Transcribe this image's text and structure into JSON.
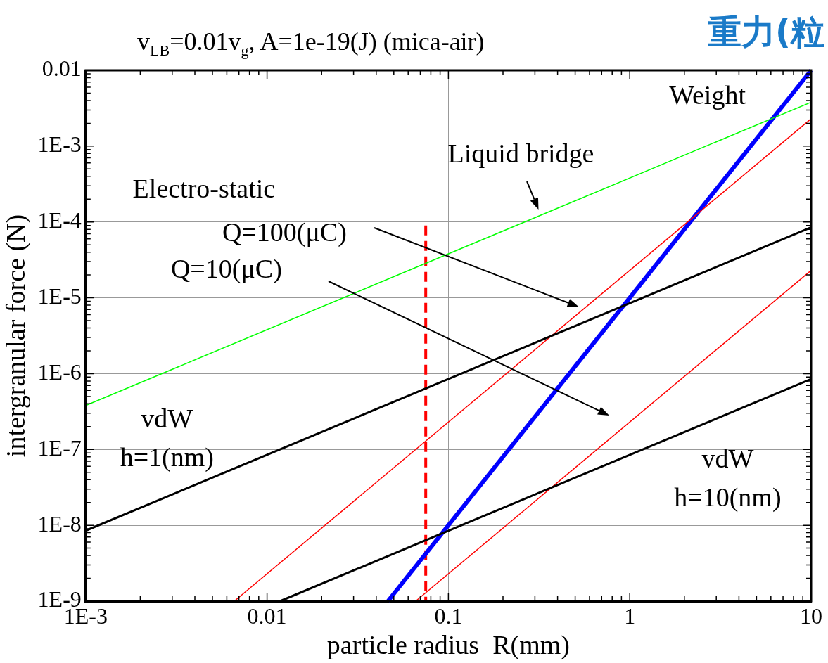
{
  "chart_data": {
    "type": "line",
    "title": "v$_{LB}$=0.01v$_{g}$,  A=1e-19(J) (mica-air)",
    "xlabel": "particle radius  R(mm)",
    "ylabel": "intergranular force (N)",
    "log": "xy",
    "grid": true,
    "legend": false,
    "marker": "none",
    "xlim": [
      0.001,
      10
    ],
    "ylim": [
      1e-09,
      0.01
    ],
    "xticks": [
      {
        "value": 0.001,
        "label": "1E-3"
      },
      0.01,
      0.1,
      1,
      10
    ],
    "yticks": [
      {
        "value": 1e-09,
        "label": "1E-9"
      },
      {
        "value": 1e-08,
        "label": "1E-8"
      },
      {
        "value": 1e-07,
        "label": "1E-7"
      },
      {
        "value": 1e-06,
        "label": "1E-6"
      },
      {
        "value": 1e-05,
        "label": "1E-5"
      },
      {
        "value": 0.0001,
        "label": "1E-4"
      },
      {
        "value": 0.001,
        "label": "1E-3"
      },
      0.01
    ],
    "series": [
      {
        "color": "#00ff00",
        "x": [
          0.001,
          10
        ],
        "values": [
          3.8e-07,
          0.0038
        ]
      },
      {
        "color": "#000000",
        "x": [
          0.001,
          10
        ],
        "values": [
          8.5e-09,
          8.5e-05
        ]
      },
      {
        "color": "#000000",
        "x": [
          0.0118,
          10
        ],
        "values": [
          1e-09,
          8.5e-07
        ]
      },
      {
        "color": "#ff0000",
        "x": [
          0.0066,
          10
        ],
        "values": [
          1e-09,
          0.0023
        ]
      },
      {
        "color": "#ff0000",
        "x": [
          0.066,
          10
        ],
        "values": [
          1e-09,
          2.3e-05
        ]
      },
      {
        "color": "#0000ff",
        "x": [
          0.0464,
          10
        ],
        "values": [
          1e-09,
          0.01
        ]
      },
      {
        "color": "#ff0000",
        "line_style": "dashed",
        "x": [
          0.075,
          0.075
        ],
        "values": [
          9e-05,
          1e-09
        ]
      }
    ],
    "annotations": [
      "重力(粒",
      "Weight",
      "Liquid bridge",
      "Electro-static",
      "Q=100(μC)",
      "Q=10(μC)",
      "vdW\nh=1(nm)",
      "vdW\nh=10(nm)"
    ]
  }
}
